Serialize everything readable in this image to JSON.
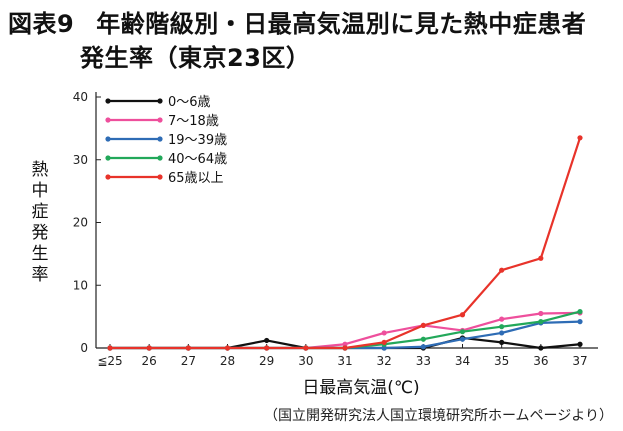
{
  "header": {
    "figure_label": "図表9",
    "title_line1": "年齢階級別・日最高気温別に見た熱中症患者",
    "title_line2": "発生率（東京23区）"
  },
  "source": "（国立開発研究法人国立環境研究所ホームページより）",
  "chart_data": {
    "type": "line",
    "title": "年齢階級別・日最高気温別に見た熱中症患者発生率（東京23区）",
    "xlabel": "日最高気温(℃)",
    "ylabel": "熱中症発生率",
    "x": [
      "≦25",
      "26",
      "27",
      "28",
      "29",
      "30",
      "31",
      "32",
      "33",
      "34",
      "35",
      "36",
      "37"
    ],
    "ylim": [
      0,
      40
    ],
    "yticks": [
      0,
      10,
      20,
      30,
      40
    ],
    "grid": false,
    "legend_position": "top-left",
    "series": [
      {
        "name": "0～6歳",
        "color": "#111111",
        "values": [
          0,
          0,
          0,
          0,
          1.2,
          0,
          0,
          0,
          0,
          1.6,
          0.9,
          0,
          0.6
        ]
      },
      {
        "name": "7～18歳",
        "color": "#ee4f9c",
        "values": [
          0,
          0,
          0,
          0,
          0,
          0,
          0.6,
          2.4,
          3.6,
          2.8,
          4.6,
          5.5,
          5.6
        ]
      },
      {
        "name": "19～39歳",
        "color": "#2e6cb5",
        "values": [
          0,
          0,
          0,
          0,
          0,
          0,
          0,
          0,
          0.2,
          1.4,
          2.4,
          4.0,
          4.2
        ]
      },
      {
        "name": "40～64歳",
        "color": "#22a85a",
        "values": [
          0,
          0,
          0,
          0,
          0,
          0,
          0,
          0.6,
          1.4,
          2.6,
          3.4,
          4.2,
          5.8
        ]
      },
      {
        "name": "65歳以上",
        "color": "#e8332a",
        "values": [
          0,
          0,
          0,
          0,
          0,
          0,
          0,
          0.9,
          3.6,
          5.3,
          12.4,
          14.3,
          33.5
        ]
      }
    ]
  }
}
